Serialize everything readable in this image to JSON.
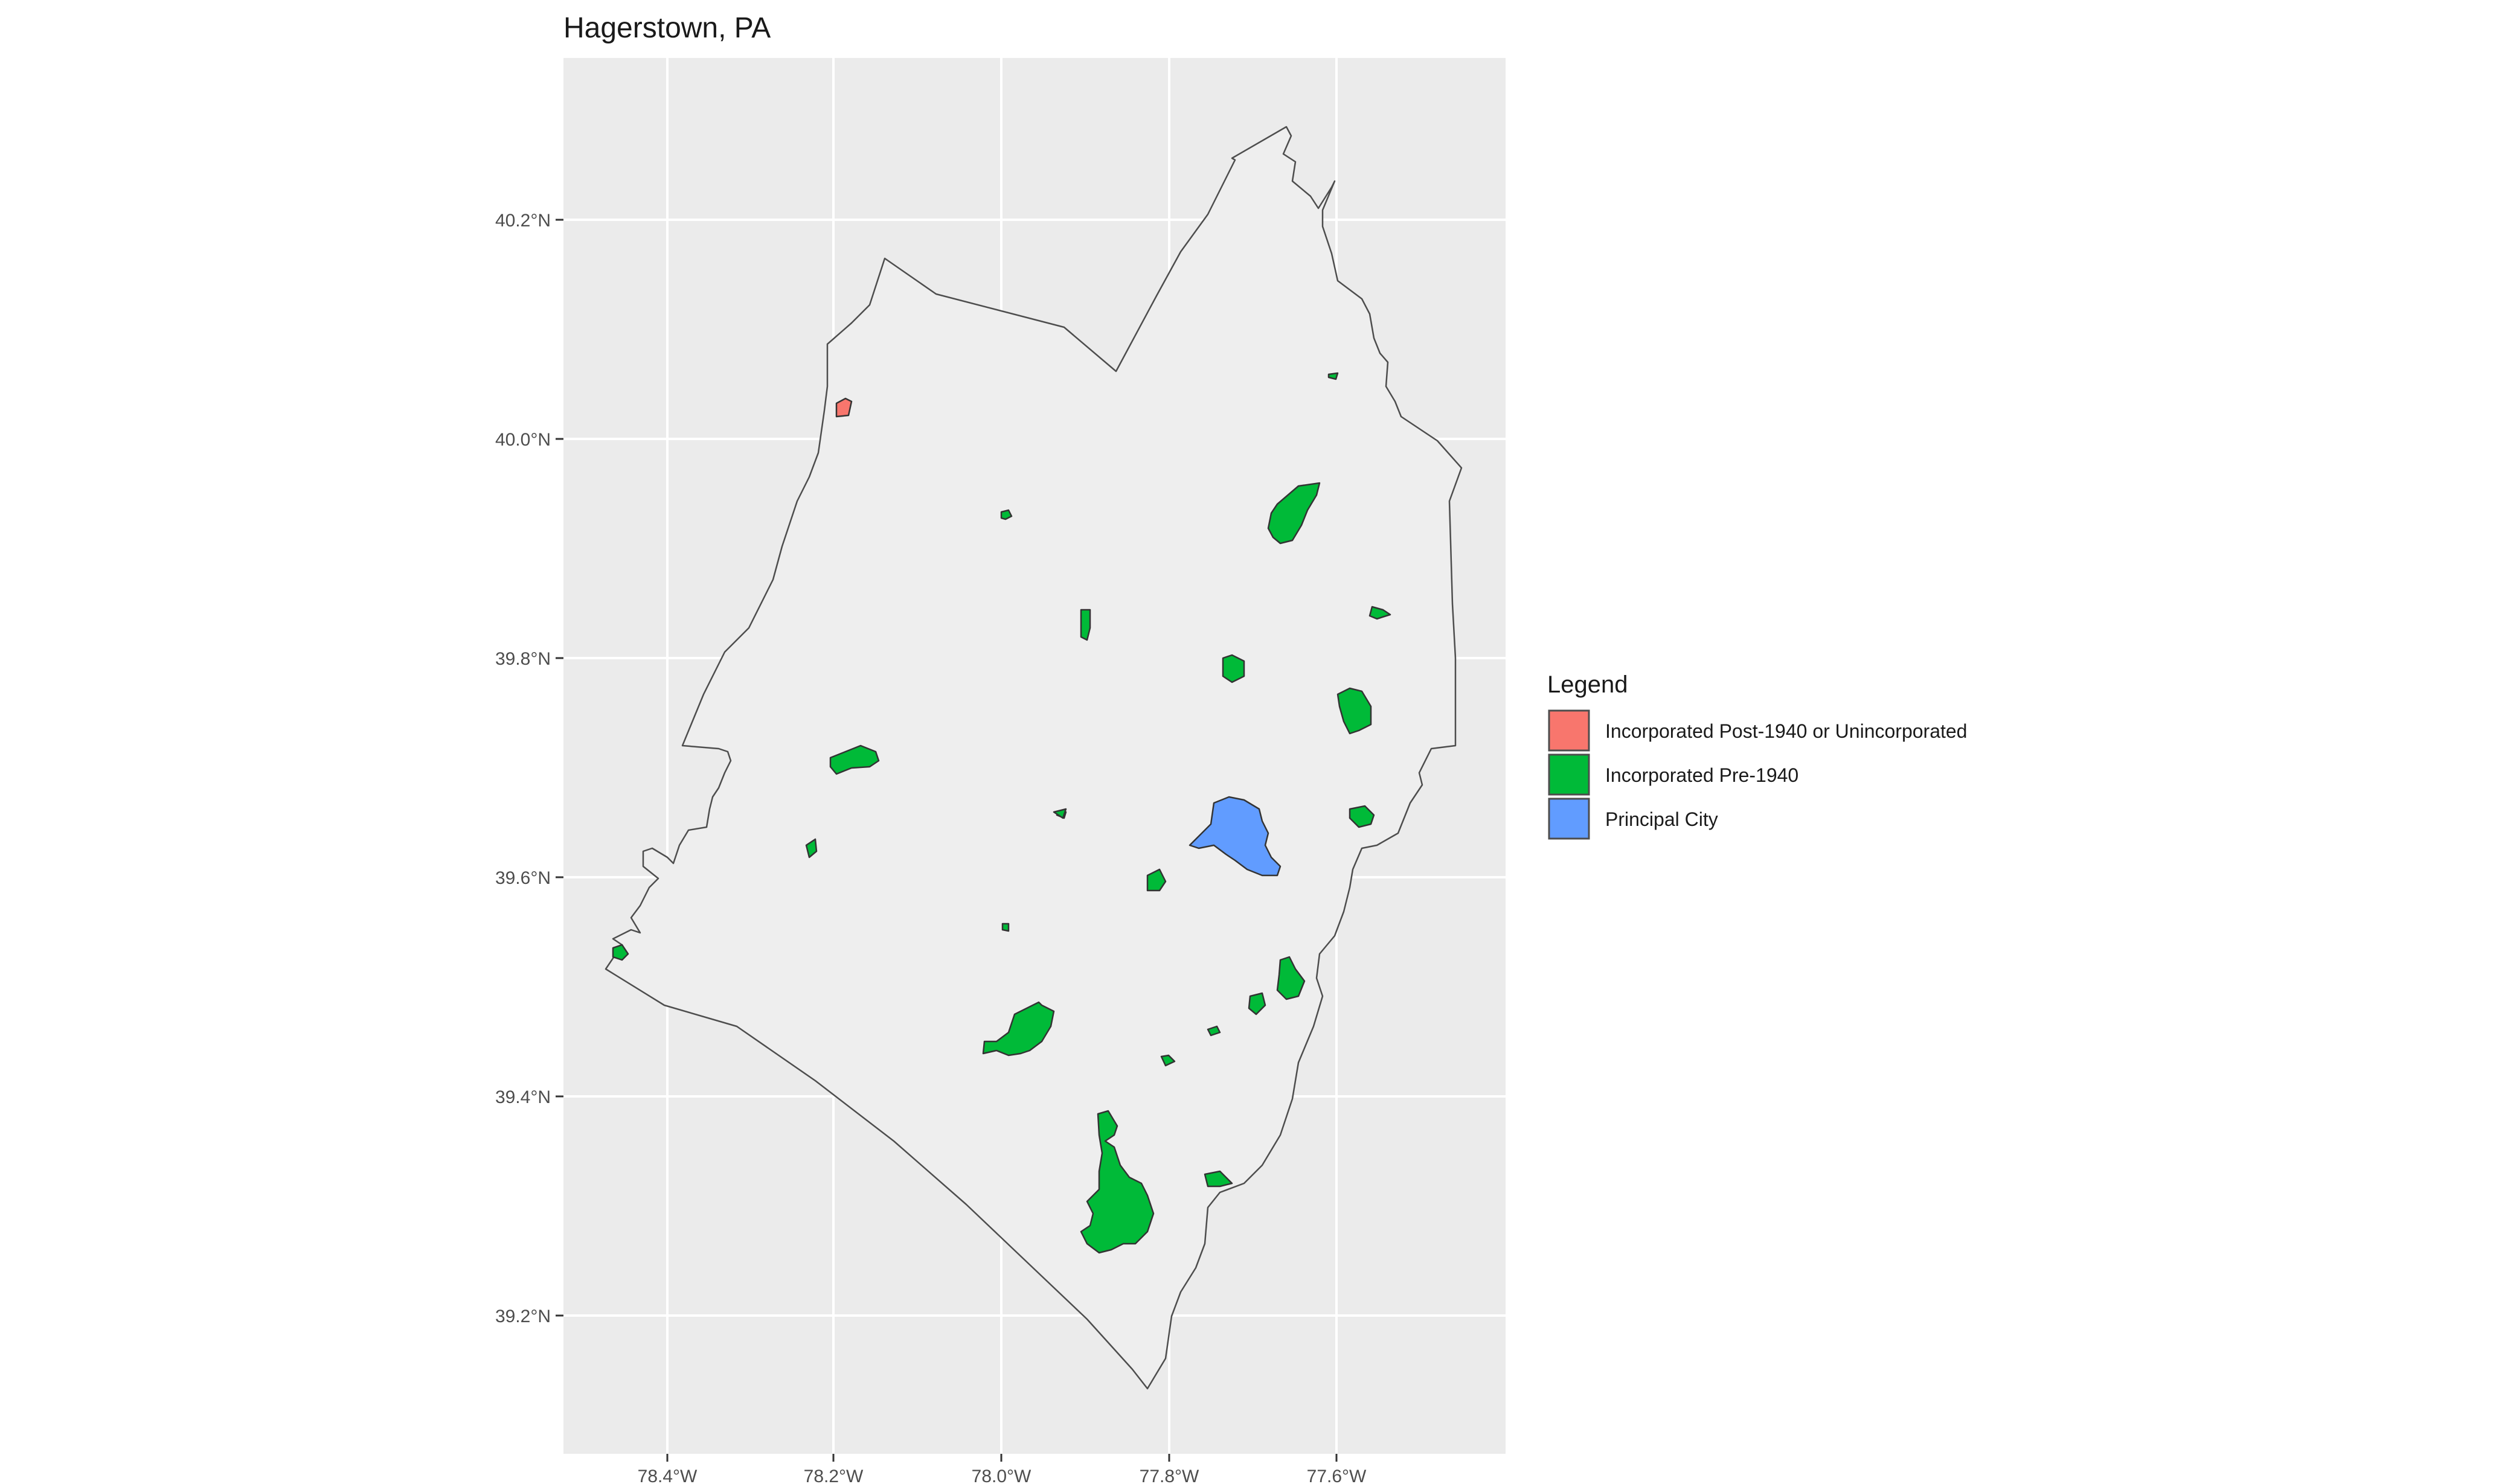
{
  "title": "Hagerstown, PA",
  "map": {
    "background": "#ebebeb",
    "grid_color": "#ffffff",
    "county_fill": "#eeeeee",
    "x_ticks": [
      "78.4°W",
      "78.2°W",
      "78.0°W",
      "77.8°W",
      "77.6°W"
    ],
    "y_ticks": [
      "40.2°N",
      "40.0°N",
      "39.8°N",
      "39.6°N",
      "39.4°N",
      "39.2°N"
    ]
  },
  "legend": {
    "title": "Legend",
    "items": [
      {
        "label": "Incorporated Post-1940 or Unincorporated",
        "color": "#f8766d"
      },
      {
        "label": "Incorporated Pre-1940",
        "color": "#00ba38"
      },
      {
        "label": "Principal City",
        "color": "#619cff"
      }
    ]
  }
}
